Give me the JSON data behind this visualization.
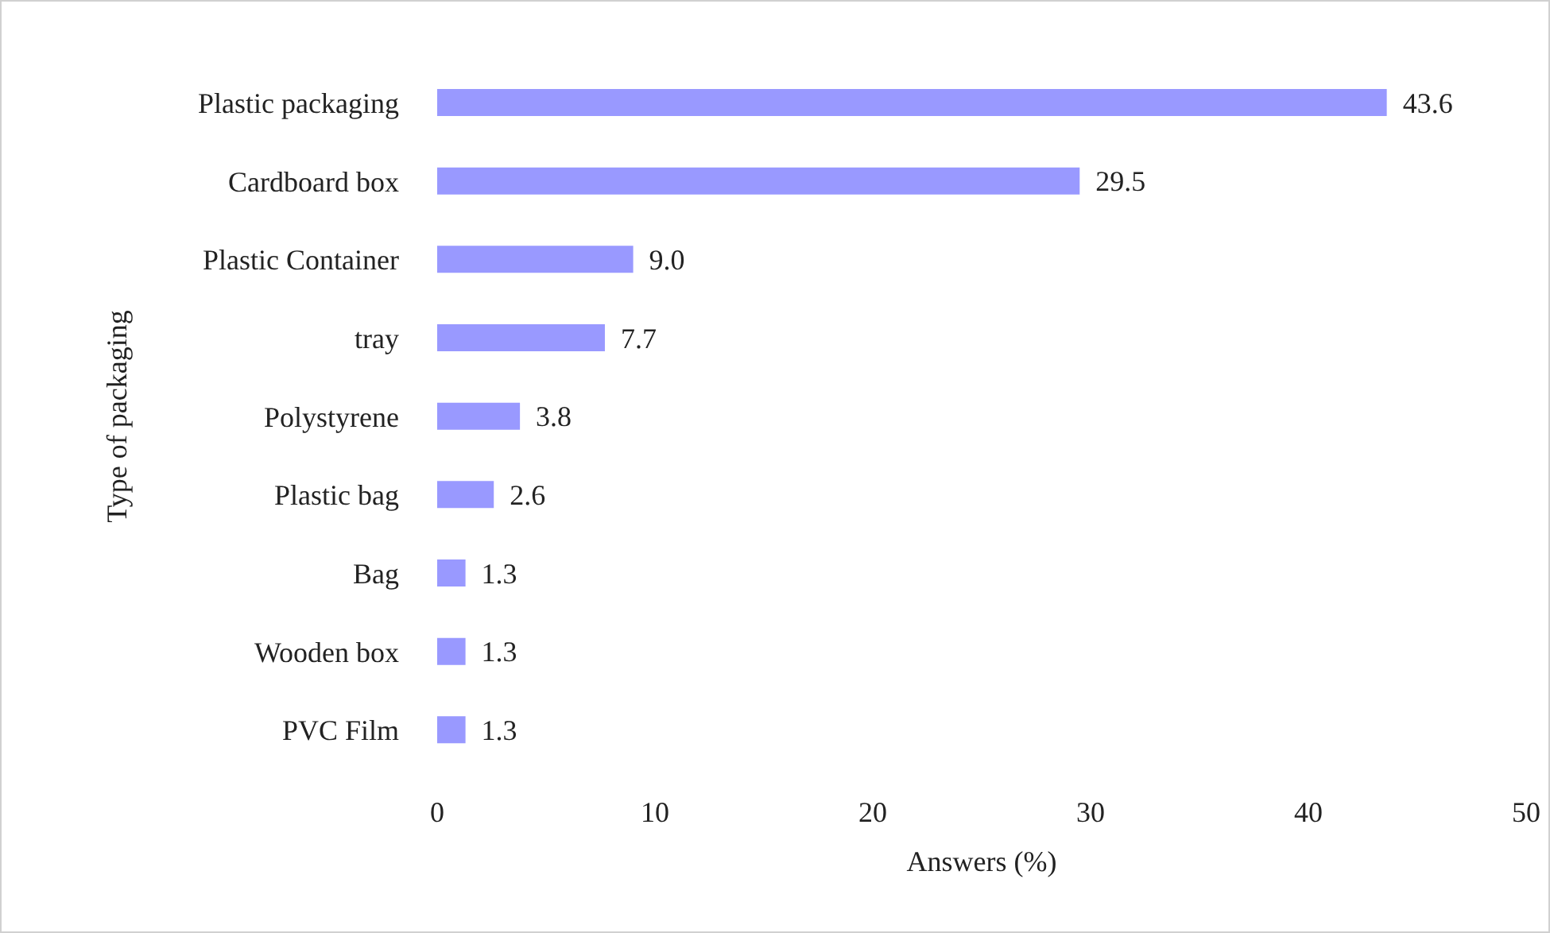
{
  "chart_data": {
    "type": "bar",
    "orientation": "horizontal",
    "xlabel": "Answers (%)",
    "ylabel": "Type of packaging",
    "categories": [
      "Plastic packaging",
      "Cardboard box",
      "Plastic Container",
      "tray",
      "Polystyrene",
      "Plastic bag",
      "Bag",
      "Wooden box",
      "PVC Film"
    ],
    "values": [
      43.6,
      29.5,
      9.0,
      7.7,
      3.8,
      2.6,
      1.3,
      1.3,
      1.3
    ],
    "value_labels": [
      "43.6",
      "29.5",
      "9.0",
      "7.7",
      "3.8",
      "2.6",
      "1.3",
      "1.3",
      "1.3"
    ],
    "color": "#9999ff",
    "xlim": [
      0,
      50
    ],
    "xticks": [
      0,
      10,
      20,
      30,
      40,
      50
    ],
    "grid": false
  }
}
